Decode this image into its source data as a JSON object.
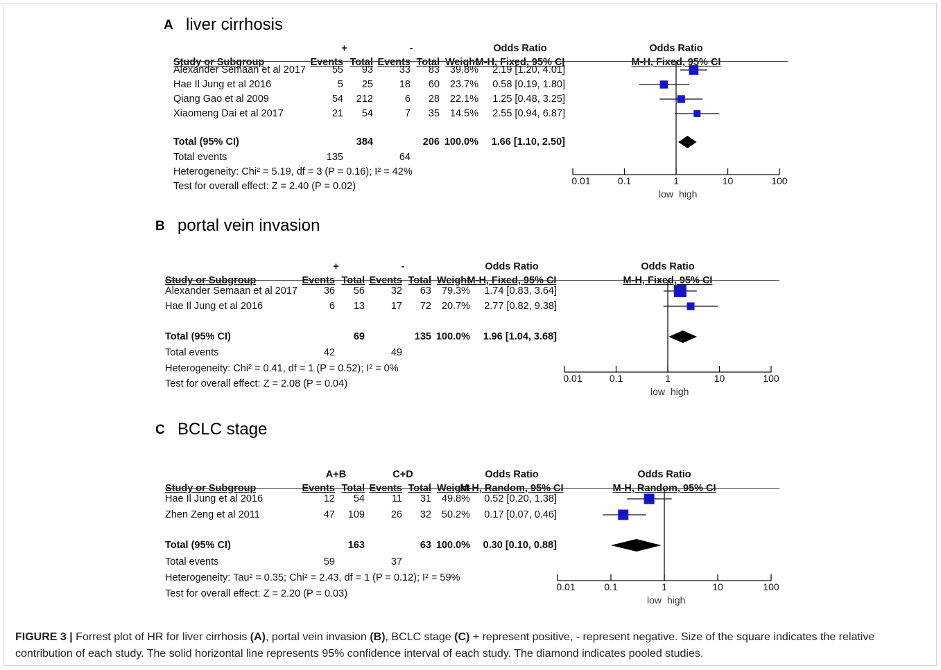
{
  "chart_data": [
    {
      "type": "forest",
      "label": "A",
      "title": "liver cirrhosis",
      "group1_label": "+",
      "group2_label": "-",
      "effect_header": "Odds Ratio",
      "method": "M-H, Fixed, 95% CI",
      "col_headers": {
        "study": "Study or Subgroup",
        "events": "Events",
        "total": "Total",
        "weight": "Weight"
      },
      "studies": [
        {
          "name": "Alexander Semaan et al 2017",
          "e1": "55",
          "n1": "93",
          "e2": "33",
          "n2": "83",
          "weight": "39.8%",
          "ci_text": "2.19 [1.20, 4.01]",
          "or": 2.19,
          "lo": 1.2,
          "hi": 4.01,
          "w": 39.8
        },
        {
          "name": "Hae Il Jung et al 2016",
          "e1": "5",
          "n1": "25",
          "e2": "18",
          "n2": "60",
          "weight": "23.7%",
          "ci_text": "0.58 [0.19, 1.80]",
          "or": 0.58,
          "lo": 0.19,
          "hi": 1.8,
          "w": 23.7
        },
        {
          "name": "Qiang Gao et al 2009",
          "e1": "54",
          "n1": "212",
          "e2": "6",
          "n2": "28",
          "weight": "22.1%",
          "ci_text": "1.25 [0.48, 3.25]",
          "or": 1.25,
          "lo": 0.48,
          "hi": 3.25,
          "w": 22.1
        },
        {
          "name": "Xiaomeng Dai et al 2017",
          "e1": "21",
          "n1": "54",
          "e2": "7",
          "n2": "35",
          "weight": "14.5%",
          "ci_text": "2.55 [0.94, 6.87]",
          "or": 2.55,
          "lo": 0.94,
          "hi": 6.87,
          "w": 14.5
        }
      ],
      "total": {
        "name": "Total (95% CI)",
        "n1": "384",
        "n2": "206",
        "weight": "100.0%",
        "ci_text": "1.66 [1.10, 2.50]",
        "or": 1.66,
        "lo": 1.1,
        "hi": 2.5
      },
      "total_events": {
        "label": "Total events",
        "e1": "135",
        "e2": "64"
      },
      "heterogeneity": "Heterogeneity: Chi² = 5.19, df = 3 (P = 0.16); I² = 42%",
      "overall_effect": "Test for overall effect: Z = 2.40 (P = 0.02)",
      "axis": {
        "scale": "log",
        "ticks": [
          "0.01",
          "0.1",
          "1",
          "10",
          "100"
        ],
        "tick_values": [
          0.01,
          0.1,
          1,
          10,
          100
        ],
        "low_label": "low",
        "high_label": "high"
      }
    },
    {
      "type": "forest",
      "label": "B",
      "title": "portal vein invasion",
      "group1_label": "+",
      "group2_label": "-",
      "effect_header": "Odds Ratio",
      "method": "M-H, Fixed, 95% CI",
      "col_headers": {
        "study": "Study or Subgroup",
        "events": "Events",
        "total": "Total",
        "weight": "Weight"
      },
      "studies": [
        {
          "name": "Alexander Semaan et al 2017",
          "e1": "36",
          "n1": "56",
          "e2": "32",
          "n2": "63",
          "weight": "79.3%",
          "ci_text": "1.74 [0.83, 3.64]",
          "or": 1.74,
          "lo": 0.83,
          "hi": 3.64,
          "w": 79.3
        },
        {
          "name": "Hae Il Jung et al 2016",
          "e1": "6",
          "n1": "13",
          "e2": "17",
          "n2": "72",
          "weight": "20.7%",
          "ci_text": "2.77 [0.82, 9.38]",
          "or": 2.77,
          "lo": 0.82,
          "hi": 9.38,
          "w": 20.7
        }
      ],
      "total": {
        "name": "Total (95% CI)",
        "n1": "69",
        "n2": "135",
        "weight": "100.0%",
        "ci_text": "1.96 [1.04, 3.68]",
        "or": 1.96,
        "lo": 1.04,
        "hi": 3.68
      },
      "total_events": {
        "label": "Total events",
        "e1": "42",
        "e2": "49"
      },
      "heterogeneity": "Heterogeneity: Chi² = 0.41, df = 1 (P = 0.52); I² = 0%",
      "overall_effect": "Test for overall effect: Z = 2.08 (P = 0.04)",
      "axis": {
        "scale": "log",
        "ticks": [
          "0.01",
          "0.1",
          "1",
          "10",
          "100"
        ],
        "tick_values": [
          0.01,
          0.1,
          1,
          10,
          100
        ],
        "low_label": "low",
        "high_label": "high"
      }
    },
    {
      "type": "forest",
      "label": "C",
      "title": "BCLC stage",
      "group1_label": "A+B",
      "group2_label": "C+D",
      "effect_header": "Odds Ratio",
      "method": "M-H, Random, 95% CI",
      "col_headers": {
        "study": "Study or Subgroup",
        "events": "Events",
        "total": "Total",
        "weight": "Weight"
      },
      "studies": [
        {
          "name": "Hae Il Jung et al 2016",
          "e1": "12",
          "n1": "54",
          "e2": "11",
          "n2": "31",
          "weight": "49.8%",
          "ci_text": "0.52 [0.20, 1.38]",
          "or": 0.52,
          "lo": 0.2,
          "hi": 1.38,
          "w": 49.8
        },
        {
          "name": "Zhen Zeng et al 2011",
          "e1": "47",
          "n1": "109",
          "e2": "26",
          "n2": "32",
          "weight": "50.2%",
          "ci_text": "0.17 [0.07, 0.46]",
          "or": 0.17,
          "lo": 0.07,
          "hi": 0.46,
          "w": 50.2
        }
      ],
      "total": {
        "name": "Total (95% CI)",
        "n1": "163",
        "n2": "63",
        "weight": "100.0%",
        "ci_text": "0.30 [0.10, 0.88]",
        "or": 0.3,
        "lo": 0.1,
        "hi": 0.88
      },
      "total_events": {
        "label": "Total events",
        "e1": "59",
        "e2": "37"
      },
      "heterogeneity": "Heterogeneity: Tau² = 0.35; Chi² = 2.43, df = 1 (P = 0.12); I² = 59%",
      "overall_effect": "Test for overall effect: Z = 2.20 (P = 0.03)",
      "axis": {
        "scale": "log",
        "ticks": [
          "0.01",
          "0.1",
          "1",
          "10",
          "100"
        ],
        "tick_values": [
          0.01,
          0.1,
          1,
          10,
          100
        ],
        "low_label": "low",
        "high_label": "high"
      }
    }
  ],
  "caption": {
    "lead": "FIGURE 3 |",
    "p1": " Forrest plot of HR for liver cirrhosis ",
    "b1": "(A)",
    "p2": ", portal vein invasion ",
    "b2": "(B)",
    "p3": ", BCLC stage ",
    "b3": "(C)",
    "p4": " + represent positive, - represent negative. Size of the square indicates the relative contribution of each study. The solid horizontal line represents 95% confidence interval of each study. The diamond indicates pooled studies."
  },
  "colors": {
    "marker": "#1515c8",
    "text": "#111111"
  }
}
